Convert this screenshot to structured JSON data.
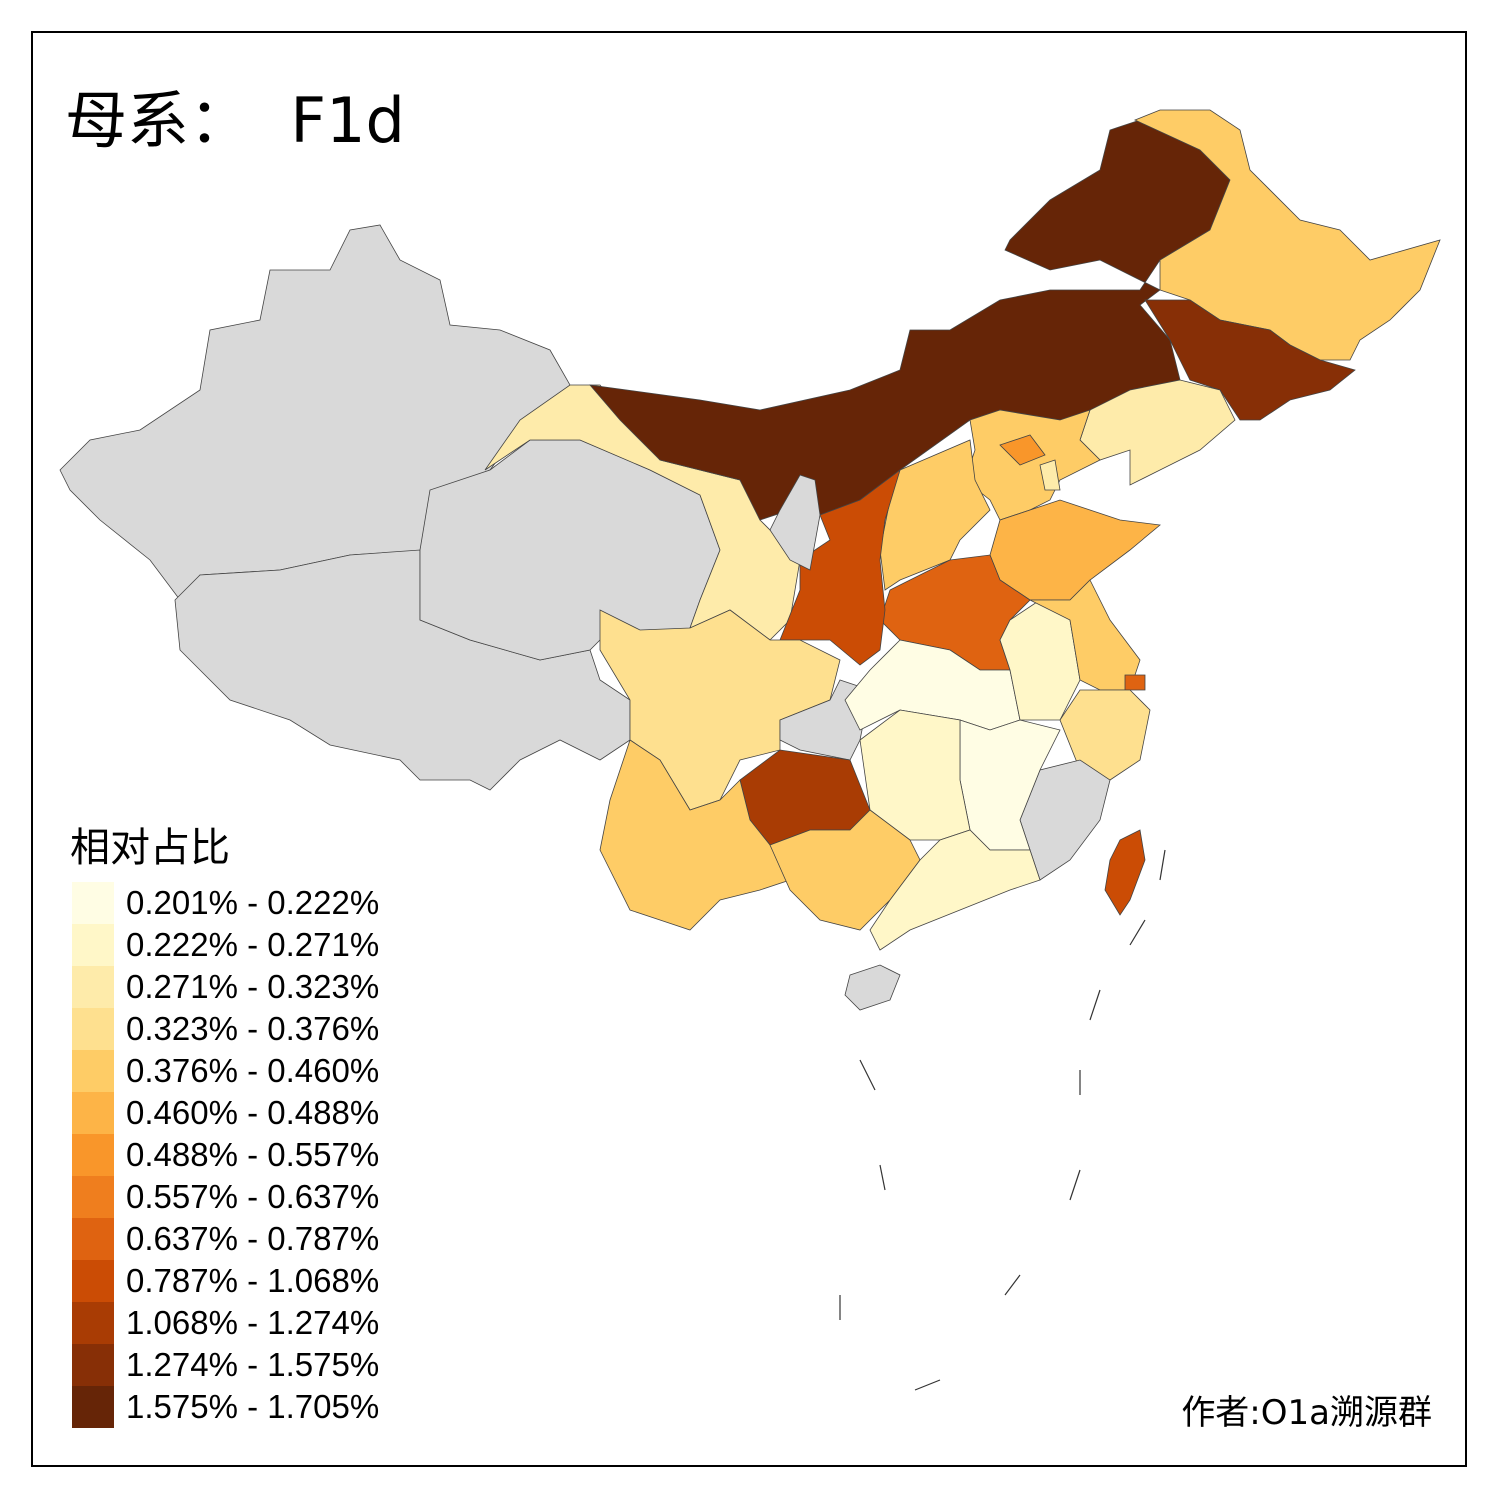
{
  "title": "母系：  F1d",
  "legend": {
    "title": "相对占比",
    "items": [
      {
        "label": "0.201% - 0.222%",
        "color": "#FFFDE4"
      },
      {
        "label": "0.222% - 0.271%",
        "color": "#FFF7C8"
      },
      {
        "label": "0.271% - 0.323%",
        "color": "#FEEBAA"
      },
      {
        "label": "0.323% - 0.376%",
        "color": "#FEE08F"
      },
      {
        "label": "0.376% - 0.460%",
        "color": "#FECC66"
      },
      {
        "label": "0.460% - 0.488%",
        "color": "#FDB447"
      },
      {
        "label": "0.488% - 0.557%",
        "color": "#F9962A"
      },
      {
        "label": "0.557% - 0.637%",
        "color": "#EF7E1E"
      },
      {
        "label": "0.637% - 0.787%",
        "color": "#DF6311"
      },
      {
        "label": "0.787% - 1.068%",
        "color": "#CB4C05"
      },
      {
        "label": "1.068% - 1.274%",
        "color": "#A93C04"
      },
      {
        "label": "1.274% - 1.575%",
        "color": "#872F06"
      },
      {
        "label": "1.575% - 1.705%",
        "color": "#662507"
      }
    ]
  },
  "no_data_color": "#D9D9D9",
  "regions": [
    {
      "name": "xinjiang",
      "class": null
    },
    {
      "name": "tibet",
      "class": null
    },
    {
      "name": "qinghai",
      "class": null
    },
    {
      "name": "gansu",
      "class": 2
    },
    {
      "name": "inner-mongolia",
      "class": 12
    },
    {
      "name": "heilongjiang",
      "class": 4
    },
    {
      "name": "jilin",
      "class": 11
    },
    {
      "name": "liaoning",
      "class": 2
    },
    {
      "name": "hebei",
      "class": 4
    },
    {
      "name": "beijing",
      "class": 6
    },
    {
      "name": "tianjin",
      "class": 2
    },
    {
      "name": "shanxi",
      "class": 4
    },
    {
      "name": "shandong",
      "class": 5
    },
    {
      "name": "henan",
      "class": 8
    },
    {
      "name": "shaanxi",
      "class": 9
    },
    {
      "name": "ningxia",
      "class": null
    },
    {
      "name": "sichuan",
      "class": 3
    },
    {
      "name": "chongqing",
      "class": null
    },
    {
      "name": "hubei",
      "class": 0
    },
    {
      "name": "anhui",
      "class": 1
    },
    {
      "name": "jiangsu",
      "class": 4
    },
    {
      "name": "shanghai",
      "class": 8
    },
    {
      "name": "zhejiang",
      "class": 3
    },
    {
      "name": "fujian",
      "class": null
    },
    {
      "name": "jiangxi",
      "class": 0
    },
    {
      "name": "hunan",
      "class": 1
    },
    {
      "name": "guizhou",
      "class": 10
    },
    {
      "name": "yunnan",
      "class": 4
    },
    {
      "name": "guangxi",
      "class": 4
    },
    {
      "name": "guangdong",
      "class": 1
    },
    {
      "name": "hainan",
      "class": null
    },
    {
      "name": "taiwan",
      "class": 9
    }
  ],
  "author": "作者:O1a溯源群"
}
